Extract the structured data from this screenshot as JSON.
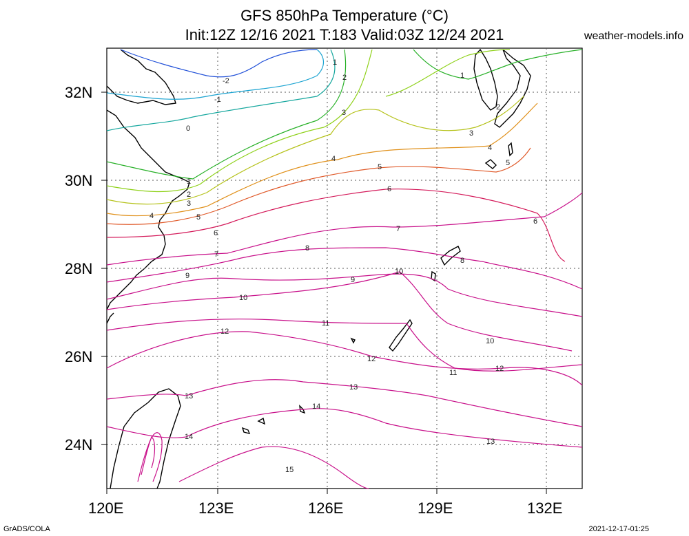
{
  "title": {
    "line1": "GFS 850hPa Temperature (°C)",
    "line2": "Init:12Z 12/16 2021 T:183 Valid:03Z 12/24 2021"
  },
  "site": "weather-models.info",
  "footer": {
    "left": "GrADS/COLA",
    "right": "2021-12-17-01:25"
  },
  "axes": {
    "x_ticks": [
      "120E",
      "123E",
      "126E",
      "129E",
      "132E"
    ],
    "y_ticks": [
      "32N",
      "30N",
      "28N",
      "26N",
      "24N"
    ],
    "lon_range": [
      120,
      133
    ],
    "lat_range": [
      23,
      33
    ]
  },
  "colors": {
    "blue": "#1f4fd8",
    "cyan": "#1aa3d1",
    "teal": "#15a79e",
    "green": "#26b026",
    "lime": "#8fd11a",
    "olive": "#b5c21a",
    "orange": "#e0901a",
    "redorange": "#e05a2a",
    "crimson": "#d41a5a",
    "magenta": "#c8108a",
    "coast": "#000000",
    "grid": "#555555"
  },
  "contour_labels": [
    "-2",
    "-1",
    "0",
    "1",
    "2",
    "3",
    "4",
    "5",
    "6",
    "7",
    "8",
    "9",
    "10",
    "11",
    "12",
    "13",
    "14",
    "15"
  ]
}
